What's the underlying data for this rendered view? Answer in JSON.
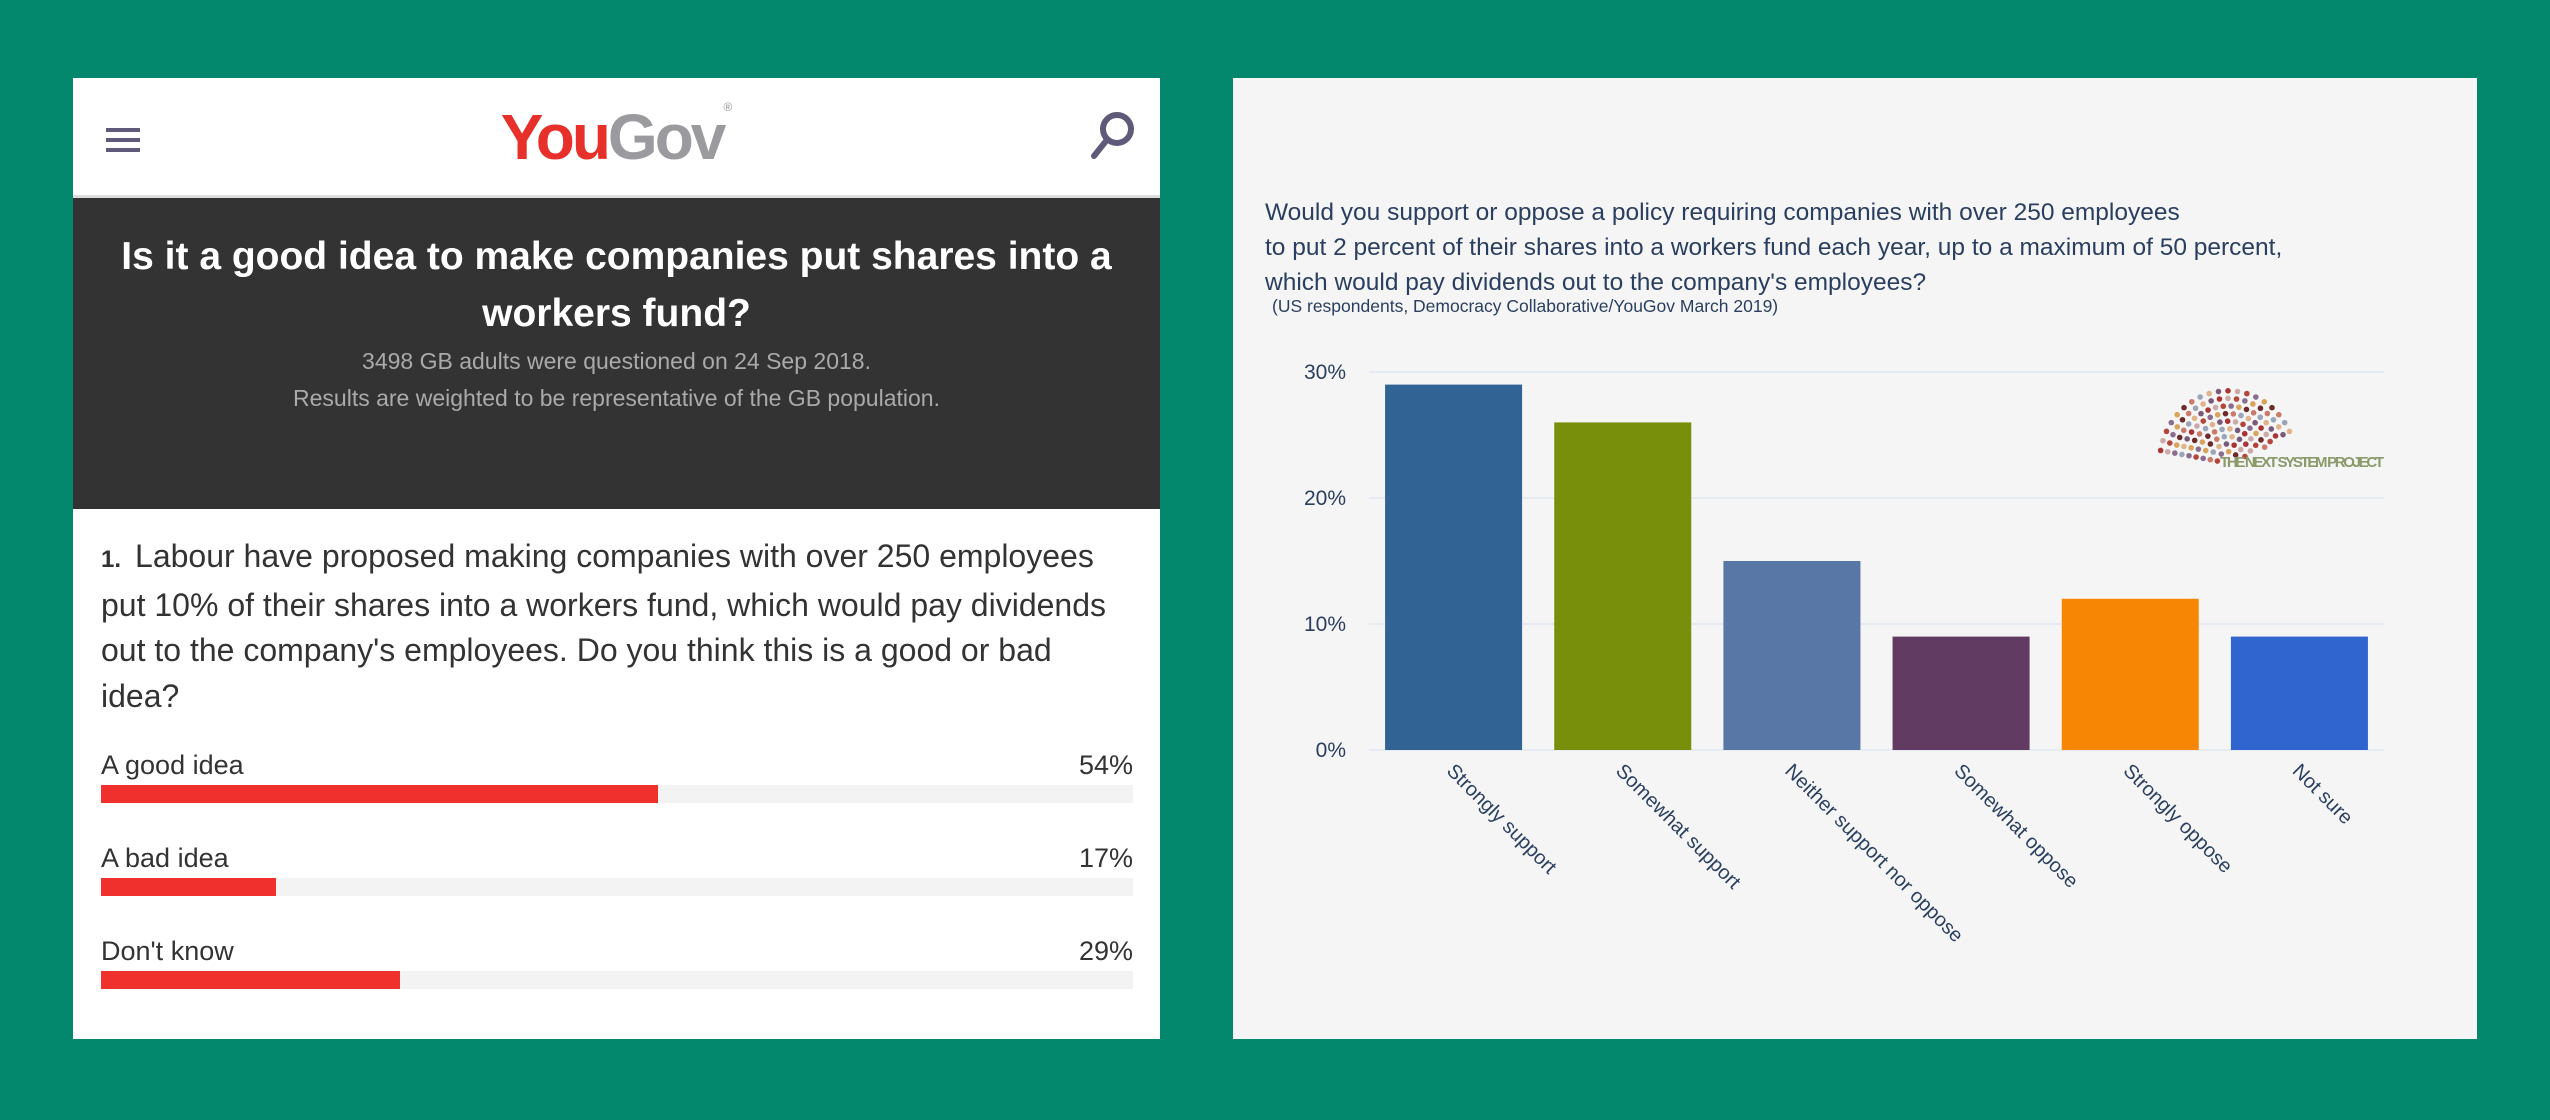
{
  "left": {
    "logo": {
      "you": "You",
      "gov": "Gov",
      "reg": "®"
    },
    "title": "Is it a good idea to make companies put shares into a workers fund?",
    "sub_line1": "3498 GB adults were questioned on 24 Sep 2018.",
    "sub_line2": "Results are weighted to be representative of the GB population.",
    "question_number": "1.",
    "question": "Labour have proposed making companies with over 250 employees put 10% of their shares into a workers fund, which would pay dividends out to the company's employees. Do you think this is a good or bad idea?",
    "accent": "#f0302d"
  },
  "chart_data": [
    {
      "type": "bar",
      "orientation": "horizontal",
      "categories": [
        "A good idea",
        "A bad idea",
        "Don't know"
      ],
      "values": [
        54,
        17,
        29
      ],
      "labels": [
        "54%",
        "17%",
        "29%"
      ],
      "xlim": [
        0,
        100
      ]
    },
    {
      "type": "bar",
      "title_lines": [
        "Would you support or oppose a policy requiring companies with over 250 employees",
        "to put 2 percent of their shares into a workers fund each year, up to a maximum of 50 percent,",
        "which would pay dividends out to the company's employees?"
      ],
      "subtitle": "(US respondents, Democracy Collaborative/YouGov March 2019)",
      "categories": [
        "Strongly support",
        "Somewhat support",
        "Neither support nor oppose",
        "Somewhat oppose",
        "Strongly oppose",
        "Not sure"
      ],
      "values": [
        29,
        26,
        15,
        9,
        12,
        9
      ],
      "colors": [
        "#316395",
        "#778f0a",
        "#5877a6",
        "#623b63",
        "#f78605",
        "#3064ce"
      ],
      "yticks": [
        0,
        10,
        20,
        30
      ],
      "ytick_labels": [
        "0%",
        "10%",
        "20%",
        "30%"
      ],
      "ylim": [
        0,
        30
      ],
      "grid": true,
      "watermark": "THE NEXT SYSTEM PROJECT"
    }
  ]
}
